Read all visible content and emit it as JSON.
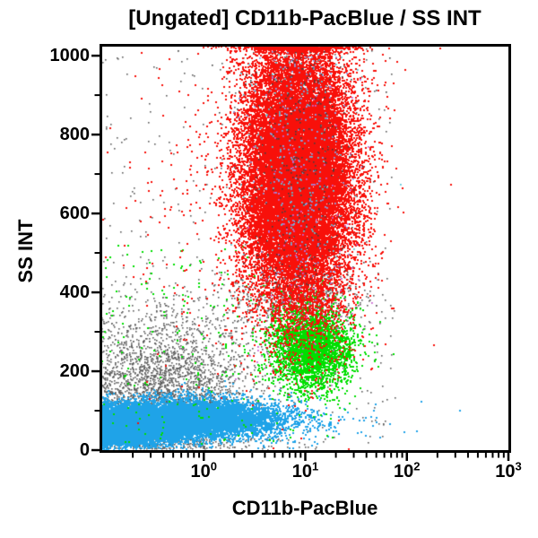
{
  "title": "[Ungated] CD11b-PacBlue / SS INT",
  "chart_data": {
    "type": "scatter",
    "title": "[Ungated] CD11b-PacBlue / SS INT",
    "xlabel": "CD11b-PacBlue",
    "ylabel": "SS INT",
    "background": "#FFFFFF",
    "frame_color": "#000000",
    "legend": "none",
    "grid": false,
    "x_axis": {
      "scale": "log10",
      "min": 0.1,
      "max": 1000,
      "major_ticks": [
        {
          "base": "10",
          "exp": "0",
          "value": 1
        },
        {
          "base": "10",
          "exp": "1",
          "value": 10
        },
        {
          "base": "10",
          "exp": "2",
          "value": 100
        },
        {
          "base": "10",
          "exp": "3",
          "value": 1000
        }
      ],
      "minor_tick_decades": [
        -1,
        0,
        1,
        2
      ],
      "minor_tick_multiples": [
        2,
        3,
        4,
        5,
        6,
        7,
        8,
        9
      ]
    },
    "y_axis": {
      "scale": "linear",
      "min": 0,
      "max": 1023,
      "major_ticks": [
        {
          "label": "0",
          "value": 0
        },
        {
          "label": "200",
          "value": 200
        },
        {
          "label": "400",
          "value": 400
        },
        {
          "label": "600",
          "value": 600
        },
        {
          "label": "800",
          "value": 800
        },
        {
          "label": "1000",
          "value": 1000
        }
      ],
      "minor_ticks": [
        100,
        300,
        500,
        700,
        900
      ]
    },
    "populations": [
      {
        "name": "debris-gray-haze",
        "color": "#5C5C5C",
        "n": 2200,
        "size": 1.6,
        "x": {
          "type": "lognormal10",
          "mean": -0.45,
          "sigma": 0.5
        },
        "y": {
          "type": "halfnormal_up",
          "base": 115,
          "sigma": 120
        }
      },
      {
        "name": "gray-red-green-boundary",
        "color": "#5C5C5C",
        "n": 750,
        "size": 1.6,
        "x": {
          "type": "lognormal10",
          "mean": 0.93,
          "sigma": 0.32
        },
        "y": {
          "type": "normal",
          "mean": 380,
          "sigma": 45
        }
      },
      {
        "name": "gray-background",
        "color": "#5C5C5C",
        "n": 420,
        "size": 1.6,
        "x": {
          "type": "loguniform",
          "min": -1,
          "max": 1.9
        },
        "y": {
          "type": "uniform",
          "min": 0,
          "max": 1023
        }
      },
      {
        "name": "gray-below-blue",
        "color": "#5C5C5C",
        "n": 260,
        "size": 1.6,
        "x": {
          "type": "lognormal10",
          "mean": -0.3,
          "sigma": 0.55
        },
        "y": {
          "type": "uniform",
          "min": 2,
          "max": 30
        }
      },
      {
        "name": "blue-population-left",
        "color": "#1FA3E8",
        "n": 9500,
        "size": 2,
        "clamp_left": true,
        "x": {
          "type": "lognormal10",
          "mean": -0.78,
          "sigma": 0.3
        },
        "y": {
          "type": "normal",
          "mean": 62,
          "sigma": 23
        }
      },
      {
        "name": "blue-population-right",
        "color": "#1FA3E8",
        "n": 8000,
        "size": 2,
        "x": {
          "type": "lognormal10",
          "mean": -0.12,
          "sigma": 0.4
        },
        "y": {
          "type": "normal",
          "mean": 80,
          "sigma": 24
        }
      },
      {
        "name": "blue-tail-right",
        "color": "#1FA3E8",
        "n": 320,
        "size": 2,
        "x": {
          "type": "lognormal10",
          "mean": 0.75,
          "sigma": 0.45
        },
        "y": {
          "type": "normal",
          "mean": 75,
          "sigma": 30
        }
      },
      {
        "name": "green-population",
        "color": "#00DF00",
        "n": 3000,
        "size": 2,
        "x": {
          "type": "lognormal10",
          "mean": 1.07,
          "sigma": 0.2
        },
        "y": {
          "type": "normal",
          "mean": 258,
          "sigma": 52
        }
      },
      {
        "name": "green-outliers",
        "color": "#00DF00",
        "n": 260,
        "size": 2,
        "x": {
          "type": "loguniform",
          "min": -1,
          "max": 1.35
        },
        "y": {
          "type": "uniform",
          "min": 15,
          "max": 520
        }
      },
      {
        "name": "red-population",
        "color": "#F8100A",
        "n": 26000,
        "size": 2,
        "clip_top": true,
        "x": {
          "type": "lognormal10",
          "mean": 0.93,
          "sigma": 0.27
        },
        "y": {
          "type": "normal",
          "mean": 700,
          "sigma": 170
        }
      },
      {
        "name": "red-outliers",
        "color": "#F8100A",
        "n": 620,
        "size": 2,
        "clip_top": true,
        "x": {
          "type": "lognormal10",
          "mean": 0.55,
          "sigma": 0.55
        },
        "y": {
          "type": "normal",
          "mean": 640,
          "sigma": 230
        }
      },
      {
        "name": "speck-lightblue-on-red",
        "color": "#7FA8F0",
        "n": 230,
        "size": 1.8,
        "x": {
          "type": "lognormal10",
          "mean": 0.93,
          "sigma": 0.22
        },
        "y": {
          "type": "uniform",
          "min": 430,
          "max": 1010
        }
      },
      {
        "name": "speck-violet",
        "color": "#C863D2",
        "n": 130,
        "size": 1.8,
        "x": {
          "type": "lognormal10",
          "mean": 1.0,
          "sigma": 0.25
        },
        "y": {
          "type": "uniform",
          "min": 160,
          "max": 950
        }
      },
      {
        "name": "speck-cyan-on-red",
        "color": "#59C8D8",
        "n": 150,
        "size": 1.8,
        "x": {
          "type": "lognormal10",
          "mean": 0.9,
          "sigma": 0.3
        },
        "y": {
          "type": "uniform",
          "min": 430,
          "max": 1020
        }
      },
      {
        "name": "speck-dark-on-red",
        "color": "#414141",
        "n": 330,
        "size": 1.6,
        "x": {
          "type": "lognormal10",
          "mean": 0.93,
          "sigma": 0.28
        },
        "y": {
          "type": "uniform",
          "min": 400,
          "max": 1015
        }
      }
    ]
  }
}
